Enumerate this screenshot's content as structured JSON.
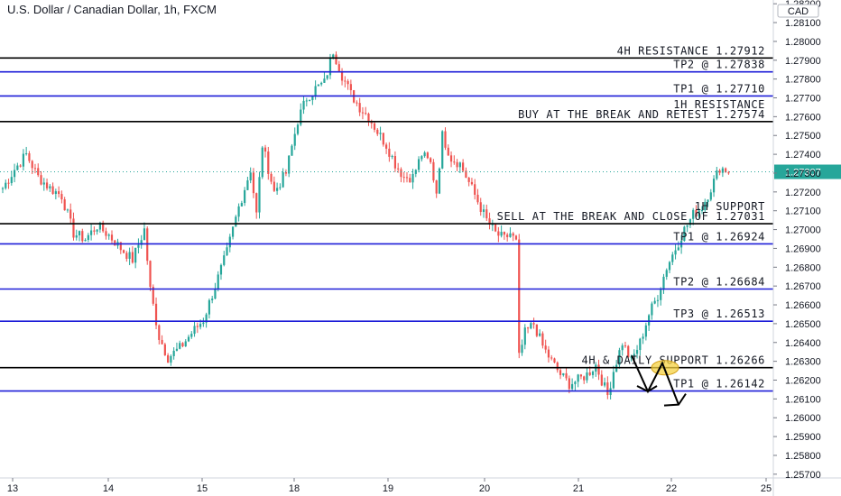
{
  "chart_data": {
    "type": "candlestick",
    "title": "U.S. Dollar / Canadian Dollar, 1h, FXCM",
    "currency_badge": "CAD",
    "last_price": "1.27307",
    "y_ticks": [
      "1.28200",
      "1.28100",
      "1.28000",
      "1.27900",
      "1.27800",
      "1.27700",
      "1.27600",
      "1.27500",
      "1.27400",
      "1.27300",
      "1.27200",
      "1.27100",
      "1.27000",
      "1.26900",
      "1.26800",
      "1.26700",
      "1.26600",
      "1.26500",
      "1.26400",
      "1.26300",
      "1.26200",
      "1.26100",
      "1.26000",
      "1.25900",
      "1.25800",
      "1.25700"
    ],
    "x_ticks": [
      "13",
      "14",
      "15",
      "18",
      "19",
      "20",
      "21",
      "22",
      "25"
    ],
    "ylim": [
      1.2568,
      1.2822
    ],
    "levels": [
      {
        "price": 1.27912,
        "lines": [
          "4H RESISTANCE 1.27912"
        ],
        "color": "#000000"
      },
      {
        "price": 1.27838,
        "lines": [
          "TP2 @ 1.27838"
        ],
        "color": "#1e1ed8"
      },
      {
        "price": 1.2771,
        "lines": [
          "TP1 @ 1.27710"
        ],
        "color": "#1e1ed8"
      },
      {
        "price": 1.27574,
        "lines": [
          "1H RESISTANCE",
          "BUY AT THE BREAK AND RETEST 1.27574"
        ],
        "color": "#000000"
      },
      {
        "price": 1.27031,
        "lines": [
          "1H SUPPORT",
          "SELL AT THE BREAK AND CLOSE OF 1.27031"
        ],
        "color": "#000000"
      },
      {
        "price": 1.26924,
        "lines": [
          "TP1 @ 1.26924"
        ],
        "color": "#1e1ed8"
      },
      {
        "price": 1.26684,
        "lines": [
          "TP2 @ 1.26684"
        ],
        "color": "#1e1ed8"
      },
      {
        "price": 1.26513,
        "lines": [
          "TP3 @ 1.26513"
        ],
        "color": "#1e1ed8"
      },
      {
        "price": 1.26266,
        "lines": [
          "4H & DAILY SUPPORT 1.26266"
        ],
        "color": "#000000"
      },
      {
        "price": 1.26142,
        "lines": [
          "TP1 @ 1.26142"
        ],
        "color": "#1e1ed8"
      }
    ],
    "colors": {
      "up": "#26a69a",
      "down": "#ef5350",
      "price_tag": "#26a69a",
      "highlight": "#f5d142"
    },
    "anchors": [
      [
        0,
        1.2722
      ],
      [
        4,
        1.2732
      ],
      [
        8,
        1.274
      ],
      [
        12,
        1.2728
      ],
      [
        16,
        1.2722
      ],
      [
        20,
        1.2718
      ],
      [
        24,
        1.2698
      ],
      [
        28,
        1.2695
      ],
      [
        32,
        1.2702
      ],
      [
        36,
        1.2697
      ],
      [
        40,
        1.269
      ],
      [
        44,
        1.2684
      ],
      [
        48,
        1.27
      ],
      [
        50,
        1.2668
      ],
      [
        53,
        1.2643
      ],
      [
        56,
        1.2632
      ],
      [
        60,
        1.2637
      ],
      [
        64,
        1.2645
      ],
      [
        68,
        1.2652
      ],
      [
        72,
        1.267
      ],
      [
        76,
        1.2688
      ],
      [
        80,
        1.2712
      ],
      [
        84,
        1.2732
      ],
      [
        86,
        1.2708
      ],
      [
        88,
        1.2745
      ],
      [
        92,
        1.272
      ],
      [
        96,
        1.273
      ],
      [
        100,
        1.2758
      ],
      [
        103,
        1.277
      ],
      [
        106,
        1.2775
      ],
      [
        109,
        1.2778
      ],
      [
        112,
        1.2795
      ],
      [
        115,
        1.2782
      ],
      [
        118,
        1.2772
      ],
      [
        121,
        1.2765
      ],
      [
        124,
        1.276
      ],
      [
        127,
        1.2752
      ],
      [
        130,
        1.2745
      ],
      [
        133,
        1.2735
      ],
      [
        136,
        1.2728
      ],
      [
        139,
        1.2728
      ],
      [
        142,
        1.274
      ],
      [
        145,
        1.2735
      ],
      [
        147,
        1.272
      ],
      [
        149,
        1.275
      ],
      [
        152,
        1.2738
      ],
      [
        155,
        1.2735
      ],
      [
        158,
        1.2725
      ],
      [
        161,
        1.2715
      ],
      [
        164,
        1.2705
      ],
      [
        167,
        1.2698
      ],
      [
        170,
        1.2695
      ],
      [
        172,
        1.2698
      ],
      [
        174,
        1.2693
      ],
      [
        175,
        1.2632
      ],
      [
        177,
        1.2645
      ],
      [
        180,
        1.265
      ],
      [
        183,
        1.2638
      ],
      [
        186,
        1.263
      ],
      [
        189,
        1.2623
      ],
      [
        192,
        1.2618
      ],
      [
        195,
        1.262
      ],
      [
        198,
        1.2623
      ],
      [
        201,
        1.2628
      ],
      [
        203,
        1.262
      ],
      [
        205,
        1.2612
      ],
      [
        207,
        1.2625
      ],
      [
        210,
        1.264
      ],
      [
        213,
        1.263
      ],
      [
        216,
        1.264
      ],
      [
        219,
        1.2655
      ],
      [
        222,
        1.2665
      ],
      [
        225,
        1.268
      ],
      [
        228,
        1.269
      ],
      [
        231,
        1.27
      ],
      [
        234,
        1.2708
      ],
      [
        237,
        1.2712
      ],
      [
        240,
        1.2722
      ],
      [
        243,
        1.2733
      ],
      [
        246,
        1.2731
      ]
    ],
    "candle_count": 247
  }
}
